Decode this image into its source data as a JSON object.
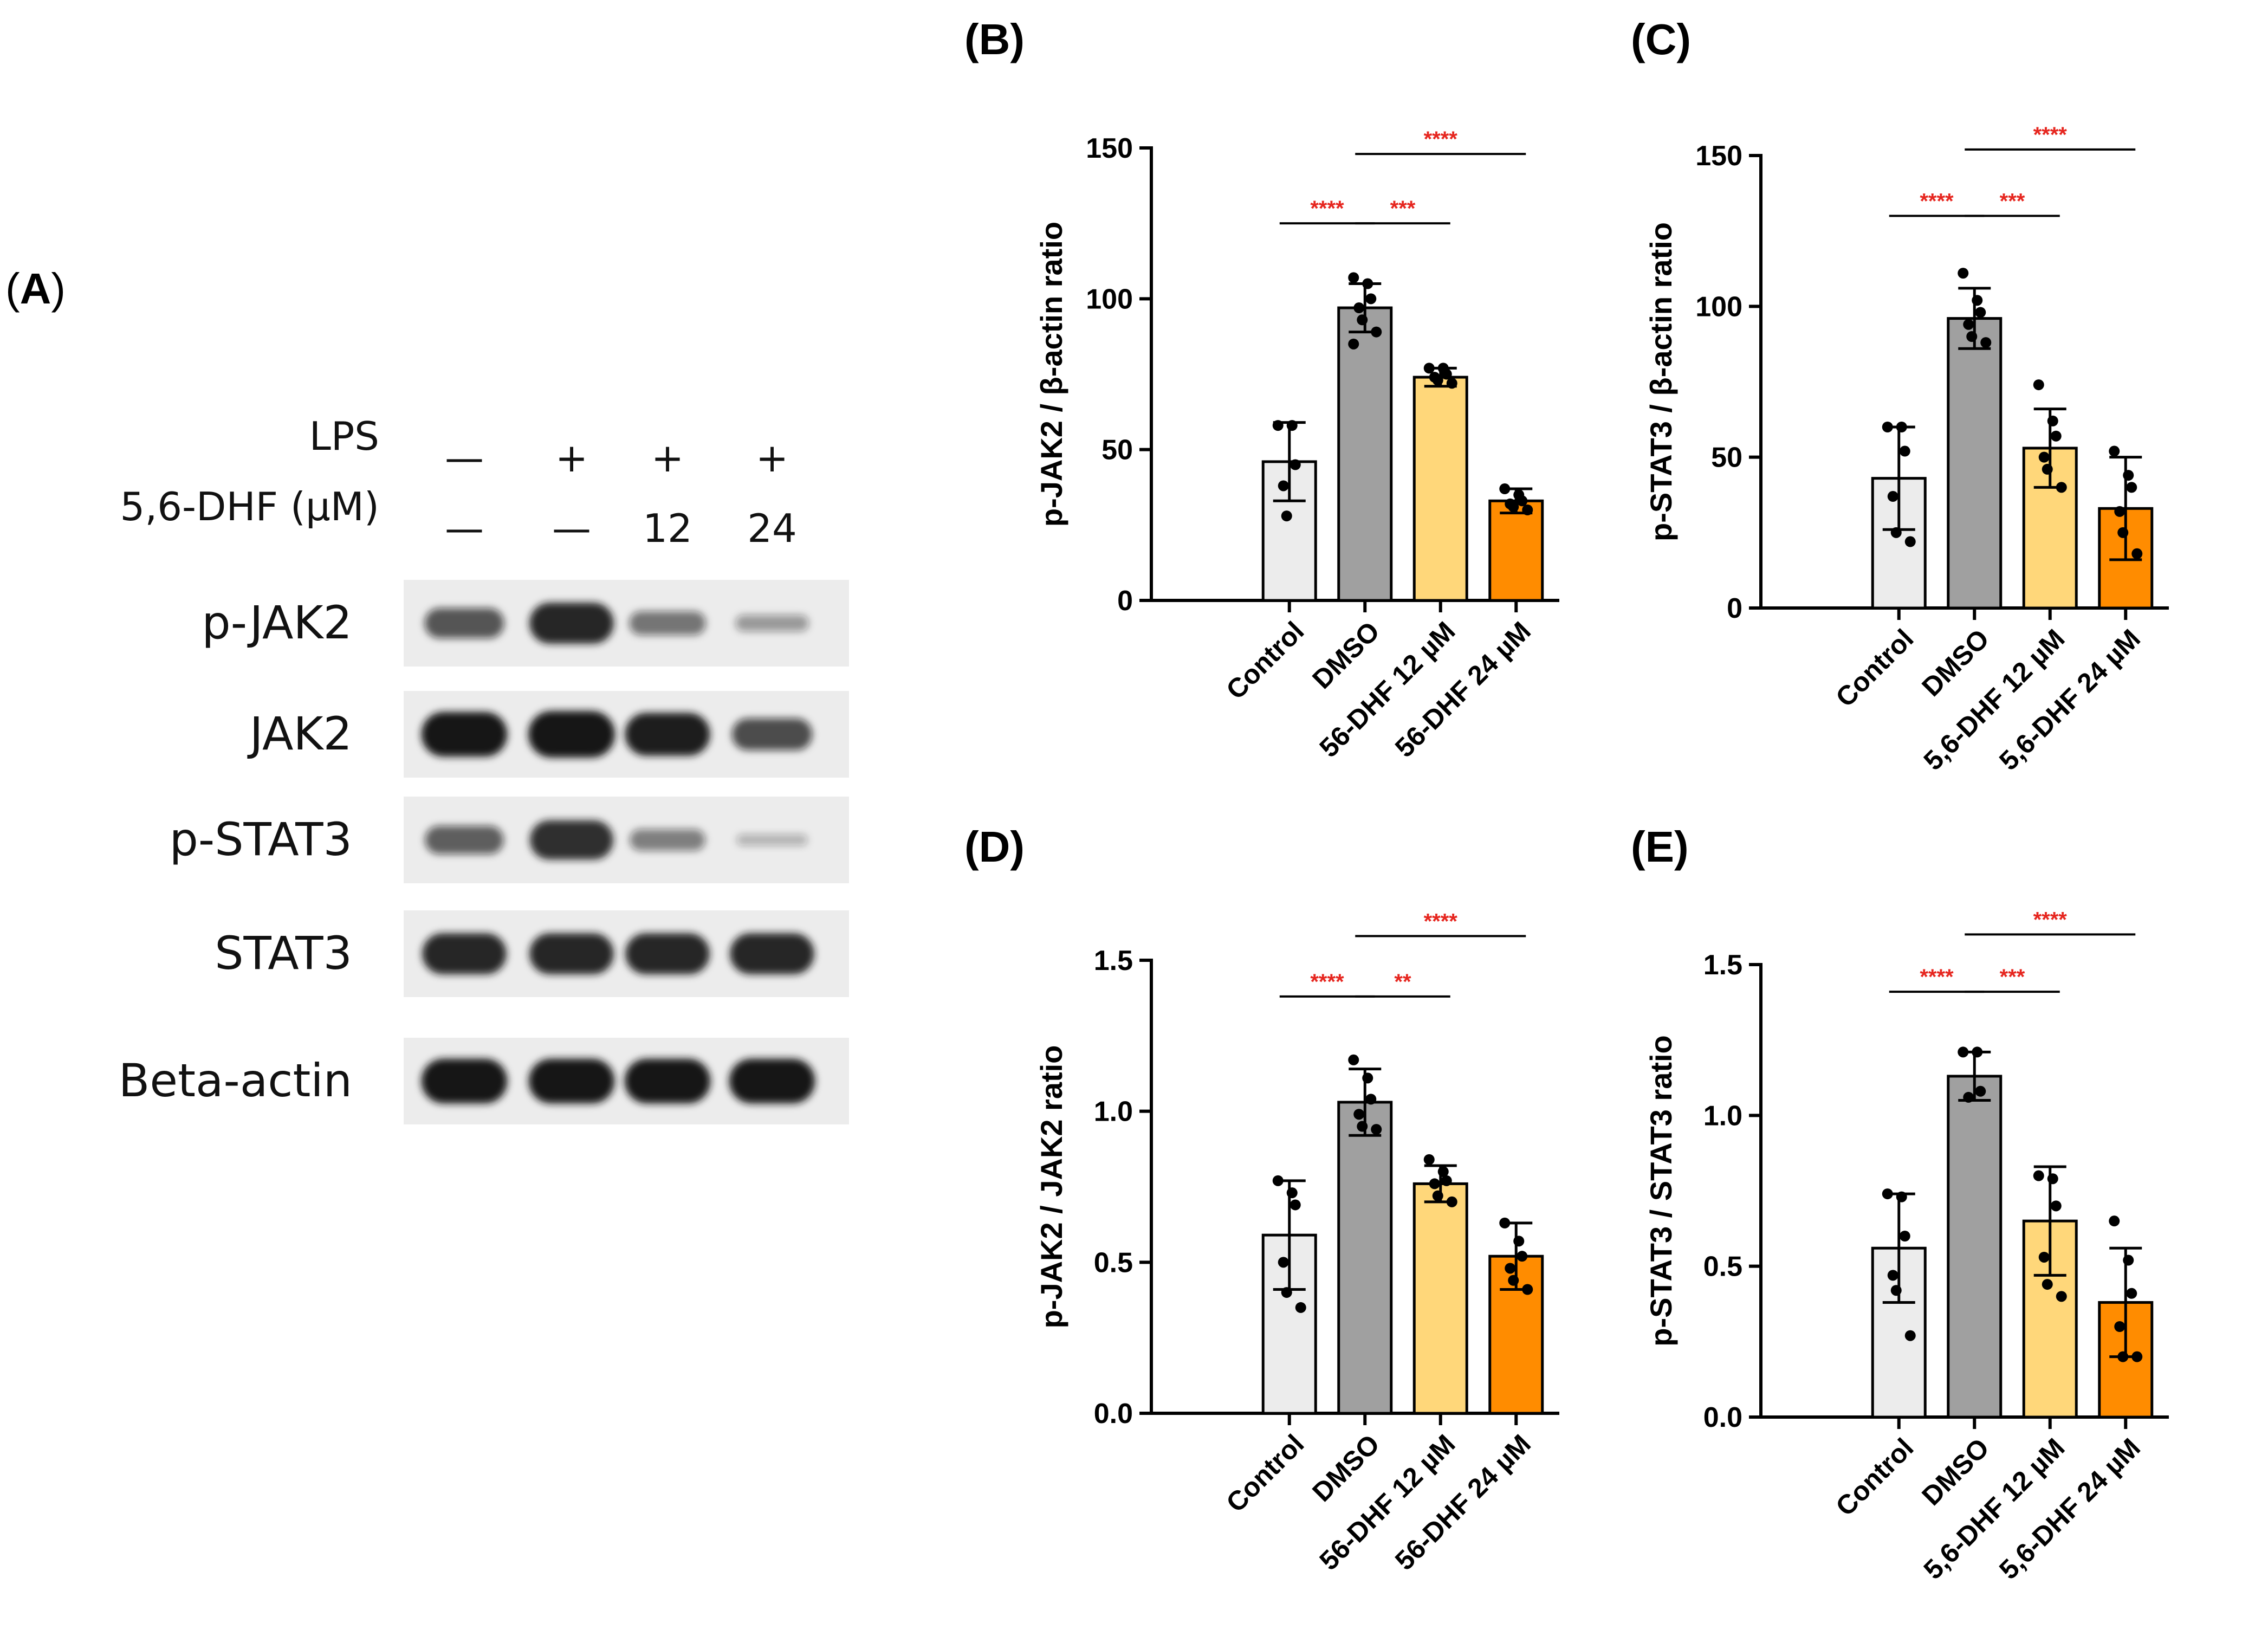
{
  "panelA": {
    "letter_prefix": "(",
    "letter": "A",
    "letter_suffix": ")",
    "conditions": [
      {
        "label": "LPS",
        "values": [
          "—",
          "+",
          "+",
          "+"
        ]
      },
      {
        "label": "5,6-DHF (µM)",
        "values": [
          "—",
          "—",
          "12",
          "24"
        ]
      }
    ],
    "blots": [
      {
        "label": "p-JAK2",
        "intensities": [
          0.55,
          0.85,
          0.38,
          0.18
        ]
      },
      {
        "label": "JAK2",
        "intensities": [
          0.95,
          1.0,
          0.9,
          0.6
        ]
      },
      {
        "label": "p-STAT3",
        "intensities": [
          0.5,
          0.8,
          0.32,
          0.04
        ]
      },
      {
        "label": "STAT3",
        "intensities": [
          0.85,
          0.85,
          0.85,
          0.85
        ]
      },
      {
        "label": "Beta-actin",
        "intensities": [
          0.95,
          0.95,
          0.95,
          0.95
        ]
      }
    ]
  },
  "colors": {
    "bars": [
      "#ececec",
      "#a0a0a0",
      "#ffd77a",
      "#ff8c00"
    ],
    "significance": "#e6261f",
    "blot_background": "#ececec",
    "band": "#161616"
  },
  "chart_data": [
    {
      "panel": "(B)",
      "type": "bar",
      "ylabel": "p-JAK2 / β-actin ratio",
      "ylim": [
        0,
        150
      ],
      "yticks": [
        "0",
        "50",
        "100",
        "150"
      ],
      "categories": [
        "Control",
        "DMSO",
        "56-DHF 12 µM",
        "56-DHF 24 µM"
      ],
      "values": [
        46,
        97,
        74,
        33
      ],
      "errors": [
        13,
        8,
        3,
        4
      ],
      "points": [
        [
          58,
          58,
          45,
          38,
          28
        ],
        [
          107,
          105,
          100,
          97,
          93,
          89,
          85
        ],
        [
          77,
          77,
          75,
          74,
          73,
          72
        ],
        [
          37,
          35,
          33,
          32,
          31,
          30
        ]
      ],
      "significance": [
        {
          "from": 0,
          "to": 1,
          "label": "****",
          "y": 125
        },
        {
          "from": 1,
          "to": 2,
          "label": "***",
          "y": 125
        },
        {
          "from": 1,
          "to": 3,
          "label": "****",
          "y": 148
        }
      ]
    },
    {
      "panel": "(C)",
      "type": "bar",
      "ylabel": "p-STAT3 / β-actin ratio",
      "ylim": [
        0,
        150
      ],
      "yticks": [
        "0",
        "50",
        "100",
        "150"
      ],
      "categories": [
        "Control",
        "DMSO",
        "5,6-DHF 12 µM",
        "5,6-DHF 24 µM"
      ],
      "values": [
        43,
        96,
        53,
        33
      ],
      "errors": [
        17,
        10,
        13,
        17
      ],
      "points": [
        [
          60,
          60,
          52,
          37,
          25,
          22
        ],
        [
          111,
          102,
          98,
          94,
          90,
          88
        ],
        [
          74,
          62,
          57,
          50,
          46,
          40
        ],
        [
          52,
          44,
          40,
          32,
          25,
          18
        ]
      ],
      "significance": [
        {
          "from": 0,
          "to": 1,
          "label": "****",
          "y": 130
        },
        {
          "from": 1,
          "to": 2,
          "label": "***",
          "y": 130
        },
        {
          "from": 1,
          "to": 3,
          "label": "****",
          "y": 152
        }
      ]
    },
    {
      "panel": "(D)",
      "type": "bar",
      "ylabel": "p-JAK2 / JAK2 ratio",
      "ylim": [
        0,
        1.5
      ],
      "yticks": [
        "0.0",
        "0.5",
        "1.0",
        "1.5"
      ],
      "categories": [
        "Control",
        "DMSO",
        "56-DHF 12 µM",
        "56-DHF 24 µM"
      ],
      "values": [
        0.59,
        1.03,
        0.76,
        0.52
      ],
      "errors": [
        0.18,
        0.11,
        0.06,
        0.11
      ],
      "points": [
        [
          0.77,
          0.73,
          0.69,
          0.5,
          0.4,
          0.35
        ],
        [
          1.17,
          1.11,
          1.04,
          0.99,
          0.95,
          0.94
        ],
        [
          0.84,
          0.8,
          0.77,
          0.76,
          0.72,
          0.7
        ],
        [
          0.63,
          0.57,
          0.52,
          0.48,
          0.44,
          0.41
        ]
      ],
      "significance": [
        {
          "from": 0,
          "to": 1,
          "label": "****",
          "y": 1.38
        },
        {
          "from": 1,
          "to": 2,
          "label": "**",
          "y": 1.38
        },
        {
          "from": 1,
          "to": 3,
          "label": "****",
          "y": 1.58
        }
      ]
    },
    {
      "panel": "(E)",
      "type": "bar",
      "ylabel": "p-STAT3 / STAT3 ratio",
      "ylim": [
        0,
        1.5
      ],
      "yticks": [
        "0.0",
        "0.5",
        "1.0",
        "1.5"
      ],
      "categories": [
        "Control",
        "DMSO",
        "5,6-DHF 12 µM",
        "5,6-DHF 24 µM"
      ],
      "values": [
        0.56,
        1.13,
        0.65,
        0.38
      ],
      "errors": [
        0.18,
        0.08,
        0.18,
        0.18
      ],
      "points": [
        [
          0.74,
          0.73,
          0.6,
          0.47,
          0.42,
          0.27
        ],
        [
          1.21,
          1.21,
          1.08,
          1.06
        ],
        [
          0.8,
          0.79,
          0.7,
          0.53,
          0.44,
          0.4
        ],
        [
          0.65,
          0.52,
          0.41,
          0.3,
          0.2,
          0.2
        ]
      ],
      "significance": [
        {
          "from": 0,
          "to": 1,
          "label": "****",
          "y": 1.41
        },
        {
          "from": 1,
          "to": 2,
          "label": "***",
          "y": 1.41
        },
        {
          "from": 1,
          "to": 3,
          "label": "****",
          "y": 1.6
        }
      ]
    }
  ]
}
